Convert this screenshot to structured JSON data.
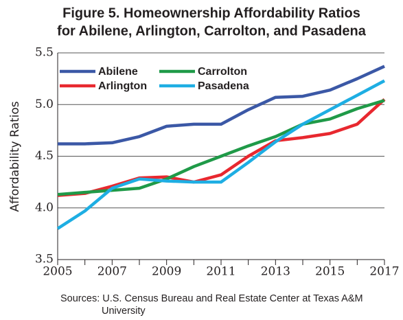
{
  "chart_data": {
    "type": "line",
    "title": [
      "Figure 5. Homeownership Affordability Ratios",
      "for Abilene, Arlington, Carrolton, and Pasadena"
    ],
    "y_label": "Affordability Ratios",
    "source": "Sources: U.S. Census Bureau and Real Estate Center at Texas A&M University",
    "x": [
      2005,
      2006,
      2007,
      2008,
      2009,
      2010,
      2011,
      2012,
      2013,
      2014,
      2015,
      2016,
      2017
    ],
    "xlim": [
      2005,
      2017
    ],
    "xticks": [
      2005,
      2007,
      2009,
      2011,
      2013,
      2015,
      2017
    ],
    "ylim": [
      3.5,
      5.5
    ],
    "yticks": [
      3.5,
      {
        "value": 4,
        "label": "4.0"
      },
      4.5,
      {
        "value": 5,
        "label": "5.0"
      },
      5.5
    ],
    "grid": true,
    "legend": "upper left",
    "series": [
      {
        "name": "Abilene",
        "color": "#3b58a6",
        "values": [
          4.62,
          4.62,
          4.63,
          4.69,
          4.79,
          4.81,
          4.81,
          4.95,
          5.07,
          5.08,
          5.14,
          5.25,
          5.37
        ]
      },
      {
        "name": "Arlington",
        "color": "#e8282f",
        "values": [
          4.12,
          4.14,
          4.21,
          4.29,
          4.3,
          4.25,
          4.32,
          4.5,
          4.65,
          4.68,
          4.72,
          4.81,
          5.05
        ]
      },
      {
        "name": "Carrolton",
        "color": "#1f9a48",
        "values": [
          4.13,
          4.15,
          4.17,
          4.19,
          4.28,
          4.4,
          4.5,
          4.6,
          4.69,
          4.81,
          4.86,
          4.96,
          5.04
        ]
      },
      {
        "name": "Pasadena",
        "color": "#1eaee3",
        "values": [
          3.8,
          3.97,
          4.19,
          4.28,
          4.26,
          4.25,
          4.25,
          4.44,
          4.64,
          4.81,
          4.95,
          5.09,
          5.23
        ]
      }
    ]
  }
}
